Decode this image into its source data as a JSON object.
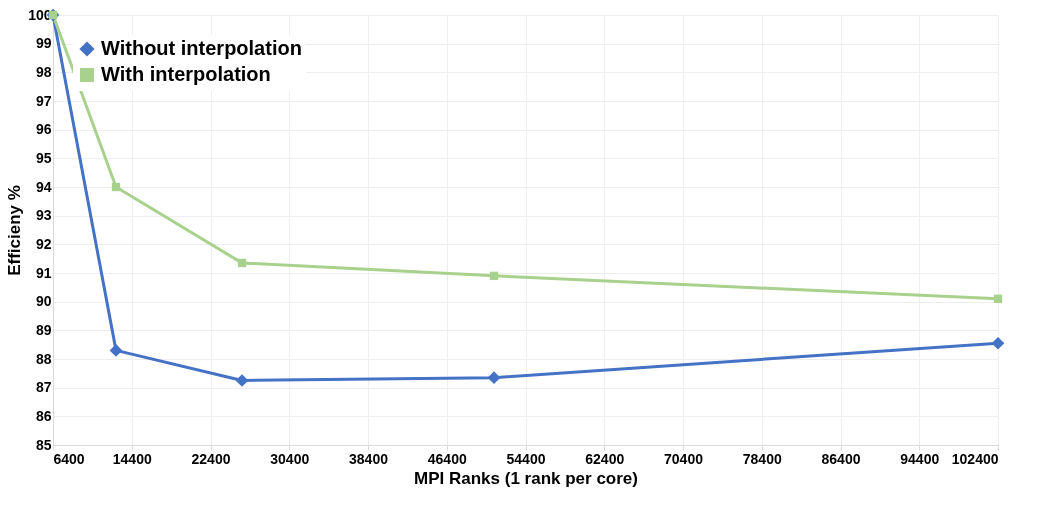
{
  "chart_data": {
    "type": "line",
    "xlabel": "MPI Ranks (1 rank per core)",
    "ylabel": "Efficieny %",
    "x": [
      6400,
      12800,
      25600,
      51200,
      102400
    ],
    "series": [
      {
        "name": "Without interpolation",
        "color": "#4472c4",
        "marker": "diamond",
        "values": [
          100,
          88.3,
          87.25,
          87.35,
          88.55
        ]
      },
      {
        "name": "With interpolation",
        "color": "#a9d18e",
        "marker": "square",
        "values": [
          100,
          94.0,
          91.35,
          90.9,
          90.1
        ]
      }
    ],
    "xlim": [
      6400,
      102400
    ],
    "xticks": [
      6400,
      14400,
      22400,
      30400,
      38400,
      46400,
      54400,
      62400,
      70400,
      78400,
      86400,
      94400,
      102400
    ],
    "ylim": [
      85,
      100
    ],
    "yticks": [
      85,
      86,
      87,
      88,
      89,
      90,
      91,
      92,
      93,
      94,
      95,
      96,
      97,
      98,
      99,
      100
    ],
    "grid": true,
    "legend": "top left",
    "line_style": "solid"
  }
}
